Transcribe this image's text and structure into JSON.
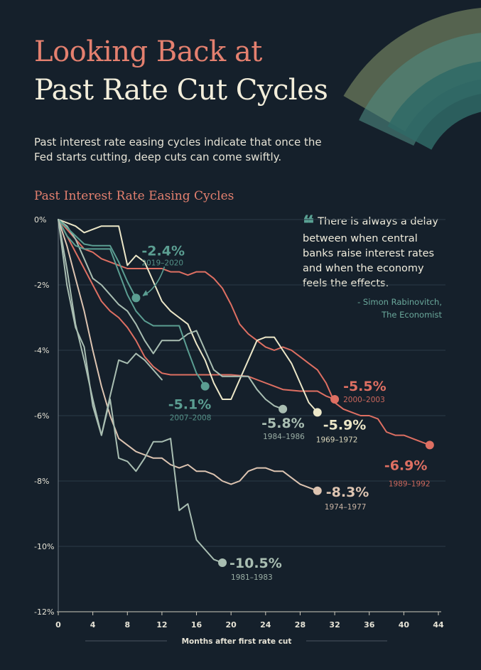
{
  "header": {
    "title_line1": "Looking Back at",
    "title_line2": "Past Rate Cut Cycles",
    "intro": "Past interest rate easing cycles indicate that once the Fed starts cutting, deep cuts can come swiftly."
  },
  "colors": {
    "background": "#15202b",
    "title_accent": "#e4806f",
    "title_main": "#f3eedb",
    "teal": "#5b9e92",
    "salmon": "#de6f62",
    "cream": "#ece7c8",
    "beige": "#ddc4b1",
    "sage": "#a9beb2",
    "grid": "#2a3a47",
    "axis_text": "#e6e3d6"
  },
  "quote": {
    "mark": "❝",
    "text": "There is always a delay between when central banks raise interest rates and when the economy feels the effects.",
    "attribution_line1": "- Simon Rabinovitch,",
    "attribution_line2": "The Economist"
  },
  "chart_data": {
    "type": "line",
    "title": "Past Interest Rate Easing Cycles",
    "xlabel": "Months after first rate cut",
    "ylabel": "",
    "xlim": [
      0,
      44
    ],
    "ylim": [
      -12,
      0
    ],
    "x_ticks": [
      "0",
      "4",
      "8",
      "12",
      "16",
      "20",
      "24",
      "28",
      "32",
      "36",
      "40",
      "44"
    ],
    "y_ticks": [
      "0%",
      "-2%",
      "-4%",
      "-6%",
      "-8%",
      "-10%",
      "-12%"
    ],
    "grid": true,
    "series": [
      {
        "name": "1989–1992",
        "label": "-6.9%",
        "color": "#de6f62",
        "x": [
          0,
          1,
          2,
          3,
          4,
          5,
          6,
          7,
          8,
          9,
          10,
          11,
          12,
          13,
          14,
          15,
          16,
          17,
          18,
          19,
          20,
          21,
          22,
          23,
          24,
          25,
          26,
          27,
          28,
          29,
          30,
          31,
          32,
          33,
          34,
          35,
          36,
          37,
          38,
          39,
          40,
          41,
          42,
          43
        ],
        "values": [
          0,
          -0.3,
          -0.6,
          -0.9,
          -1.0,
          -1.2,
          -1.3,
          -1.4,
          -1.5,
          -1.5,
          -1.5,
          -1.5,
          -1.5,
          -1.6,
          -1.6,
          -1.7,
          -1.6,
          -1.6,
          -1.8,
          -2.1,
          -2.6,
          -3.2,
          -3.5,
          -3.7,
          -3.9,
          -4.0,
          -3.9,
          -4.0,
          -4.2,
          -4.4,
          -4.6,
          -5.0,
          -5.6,
          -5.8,
          -5.9,
          -6.0,
          -6.0,
          -6.1,
          -6.5,
          -6.6,
          -6.6,
          -6.7,
          -6.8,
          -6.9
        ],
        "end_x": 43,
        "end_value": -6.9
      },
      {
        "name": "2000–2003",
        "label": "-5.5%",
        "color": "#de6f62",
        "x": [
          0,
          1,
          2,
          3,
          4,
          5,
          6,
          7,
          8,
          9,
          10,
          11,
          12,
          13,
          14,
          16,
          18,
          20,
          22,
          24,
          26,
          28,
          30,
          31,
          32
        ],
        "values": [
          0,
          -0.5,
          -1.0,
          -1.5,
          -2.0,
          -2.5,
          -2.8,
          -3.0,
          -3.3,
          -3.7,
          -4.2,
          -4.5,
          -4.7,
          -4.75,
          -4.75,
          -4.75,
          -4.75,
          -4.75,
          -4.8,
          -5.0,
          -5.2,
          -5.25,
          -5.25,
          -5.4,
          -5.5
        ],
        "end_x": 32,
        "end_value": -5.5
      },
      {
        "name": "1969–1972",
        "label": "-5.9%",
        "color": "#ece7c8",
        "x": [
          0,
          1,
          2,
          3,
          4,
          5,
          6,
          7,
          8,
          9,
          10,
          11,
          12,
          13,
          14,
          15,
          16,
          17,
          18,
          19,
          20,
          21,
          22,
          23,
          24,
          25,
          26,
          27,
          28,
          29,
          30
        ],
        "values": [
          0,
          -0.1,
          -0.2,
          -0.4,
          -0.3,
          -0.2,
          -0.2,
          -0.2,
          -1.4,
          -1.1,
          -1.3,
          -1.9,
          -2.5,
          -2.8,
          -3.0,
          -3.2,
          -3.8,
          -4.3,
          -5.0,
          -5.5,
          -5.5,
          -4.9,
          -4.3,
          -3.7,
          -3.6,
          -3.6,
          -4.0,
          -4.4,
          -5.0,
          -5.6,
          -5.9
        ],
        "end_x": 30,
        "end_value": -5.9
      },
      {
        "name": "1984–1986",
        "label": "-5.8%",
        "color": "#a9beb2",
        "x": [
          0,
          1,
          2,
          3,
          4,
          5,
          6,
          7,
          8,
          9,
          10,
          11,
          12,
          13,
          14,
          15,
          16,
          17,
          18,
          19,
          20,
          21,
          22,
          23,
          24,
          25,
          26
        ],
        "values": [
          0,
          -0.2,
          -0.6,
          -1.2,
          -1.8,
          -2.0,
          -2.3,
          -2.6,
          -2.8,
          -3.2,
          -3.7,
          -4.1,
          -3.7,
          -3.7,
          -3.7,
          -3.5,
          -3.4,
          -4.0,
          -4.6,
          -4.8,
          -4.8,
          -4.8,
          -4.8,
          -5.2,
          -5.5,
          -5.7,
          -5.8
        ],
        "end_x": 26,
        "end_value": -5.8
      },
      {
        "name": "2019–2020",
        "label": "-2.4%",
        "color": "#5b9e92",
        "x": [
          0,
          1,
          2,
          3,
          4,
          5,
          6,
          7,
          8,
          9
        ],
        "values": [
          0,
          -0.25,
          -0.5,
          -0.75,
          -0.8,
          -0.8,
          -0.8,
          -1.3,
          -1.9,
          -2.4
        ],
        "end_x": 9,
        "end_value": -2.4
      },
      {
        "name": "2007–2008",
        "label": "-5.1%",
        "color": "#5b9e92",
        "x": [
          0,
          1,
          2,
          3,
          4,
          5,
          6,
          7,
          8,
          9,
          10,
          11,
          12,
          13,
          14,
          15,
          16,
          17
        ],
        "values": [
          0,
          -0.5,
          -0.8,
          -0.9,
          -0.9,
          -0.9,
          -0.9,
          -1.6,
          -2.3,
          -2.8,
          -3.1,
          -3.25,
          -3.25,
          -3.25,
          -3.25,
          -4.0,
          -4.7,
          -5.1
        ],
        "end_x": 17,
        "end_value": -5.1
      },
      {
        "name": "1974–1977",
        "label": "-8.3%",
        "color": "#ddc4b1",
        "x": [
          0,
          1,
          2,
          3,
          4,
          5,
          6,
          7,
          8,
          9,
          10,
          11,
          12,
          13,
          14,
          15,
          16,
          17,
          18,
          19,
          20,
          21,
          22,
          23,
          24,
          25,
          26,
          27,
          28,
          29,
          30
        ],
        "values": [
          0,
          -0.8,
          -1.8,
          -2.8,
          -4.0,
          -5.1,
          -6.0,
          -6.7,
          -6.9,
          -7.1,
          -7.2,
          -7.3,
          -7.3,
          -7.5,
          -7.6,
          -7.5,
          -7.7,
          -7.7,
          -7.8,
          -8.0,
          -8.1,
          -8.0,
          -7.7,
          -7.6,
          -7.6,
          -7.7,
          -7.7,
          -7.9,
          -8.1,
          -8.2,
          -8.3
        ],
        "end_x": 30,
        "end_value": -8.3
      },
      {
        "name": "1981–1983",
        "label": "-10.5%",
        "color": "#a9beb2",
        "x": [
          0,
          1,
          2,
          3,
          4,
          5,
          6,
          7,
          8,
          9,
          10,
          11,
          12,
          13,
          14,
          15,
          16,
          17,
          18,
          19
        ],
        "values": [
          0,
          -1.5,
          -3.2,
          -4.3,
          -5.5,
          -6.6,
          -5.5,
          -7.3,
          -7.4,
          -7.7,
          -7.3,
          -6.8,
          -6.8,
          -6.7,
          -8.9,
          -8.7,
          -9.8,
          -10.1,
          -10.4,
          -10.5
        ],
        "end_x": 19,
        "end_value": -10.5
      },
      {
        "name": "cycle line (unlabeled)",
        "color": "#a9beb2",
        "x": [
          0,
          1,
          2,
          3,
          4,
          5,
          6,
          7,
          8,
          9,
          10,
          11,
          12
        ],
        "values": [
          0,
          -2.0,
          -3.3,
          -3.9,
          -5.7,
          -6.6,
          -5.4,
          -4.3,
          -4.4,
          -4.1,
          -4.3,
          -4.6,
          -4.9
        ],
        "end_x": null,
        "end_value": null
      }
    ]
  }
}
